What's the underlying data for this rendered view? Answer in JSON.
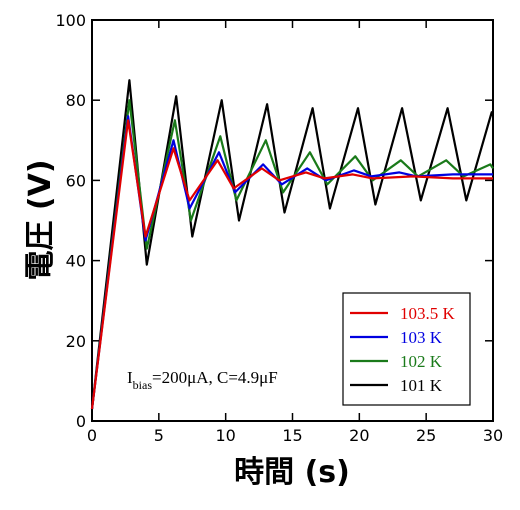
{
  "chart_data": {
    "type": "line",
    "xlabel": "時間 (s)",
    "ylabel": "電圧 (V)",
    "annotation": {
      "main": "I",
      "sub": "bias",
      "rest": "=200μA, C=4.9μF"
    },
    "xlim": [
      0,
      30
    ],
    "ylim": [
      0,
      100
    ],
    "xticks": [
      0,
      5,
      10,
      15,
      20,
      25,
      30
    ],
    "yticks": [
      0,
      20,
      40,
      60,
      80,
      100
    ],
    "legend": "lower right",
    "series": [
      {
        "name": "103.5 K",
        "color": "#e00000",
        "x": [
          0,
          2.7,
          4.0,
          6.1,
          7.3,
          9.4,
          10.6,
          12.7,
          14.0,
          16.0,
          17.4,
          19.5,
          21.0,
          24.0,
          27.0,
          30.0
        ],
        "values": [
          3,
          75,
          46,
          68,
          55,
          65,
          58,
          63,
          60,
          62,
          60.5,
          61.5,
          60.5,
          61,
          60.5,
          60.5
        ]
      },
      {
        "name": "103 K",
        "color": "#0000e0",
        "x": [
          0,
          2.7,
          4.0,
          6.1,
          7.3,
          9.5,
          10.7,
          12.8,
          14.2,
          16.1,
          17.5,
          19.6,
          20.9,
          23.0,
          24.3,
          27.0,
          30.0
        ],
        "values": [
          3,
          76,
          45,
          70,
          53,
          67,
          57,
          64,
          59,
          63,
          60,
          62.5,
          61,
          62,
          61,
          61.5,
          61.5
        ]
      },
      {
        "name": "102 K",
        "color": "#1a7a1a",
        "x": [
          0,
          2.8,
          4.1,
          6.2,
          7.4,
          9.6,
          10.8,
          13.0,
          14.3,
          16.3,
          17.6,
          19.7,
          21.0,
          23.1,
          24.4,
          26.5,
          27.8,
          29.8,
          30.0
        ],
        "values": [
          3,
          80,
          43,
          75,
          50,
          71,
          55,
          70,
          57,
          67,
          59,
          66,
          60,
          65,
          61,
          65,
          61,
          64,
          63
        ]
      },
      {
        "name": "101 K",
        "color": "#000000",
        "x": [
          0,
          2.8,
          4.1,
          6.3,
          7.5,
          9.7,
          11.0,
          13.1,
          14.4,
          16.5,
          17.8,
          19.9,
          21.2,
          23.2,
          24.6,
          26.6,
          28.0,
          29.9,
          30.0
        ],
        "values": [
          3,
          85,
          39,
          81,
          46,
          80,
          50,
          79,
          52,
          78,
          53,
          78,
          54,
          78,
          55,
          78,
          55,
          77,
          76
        ]
      }
    ]
  }
}
